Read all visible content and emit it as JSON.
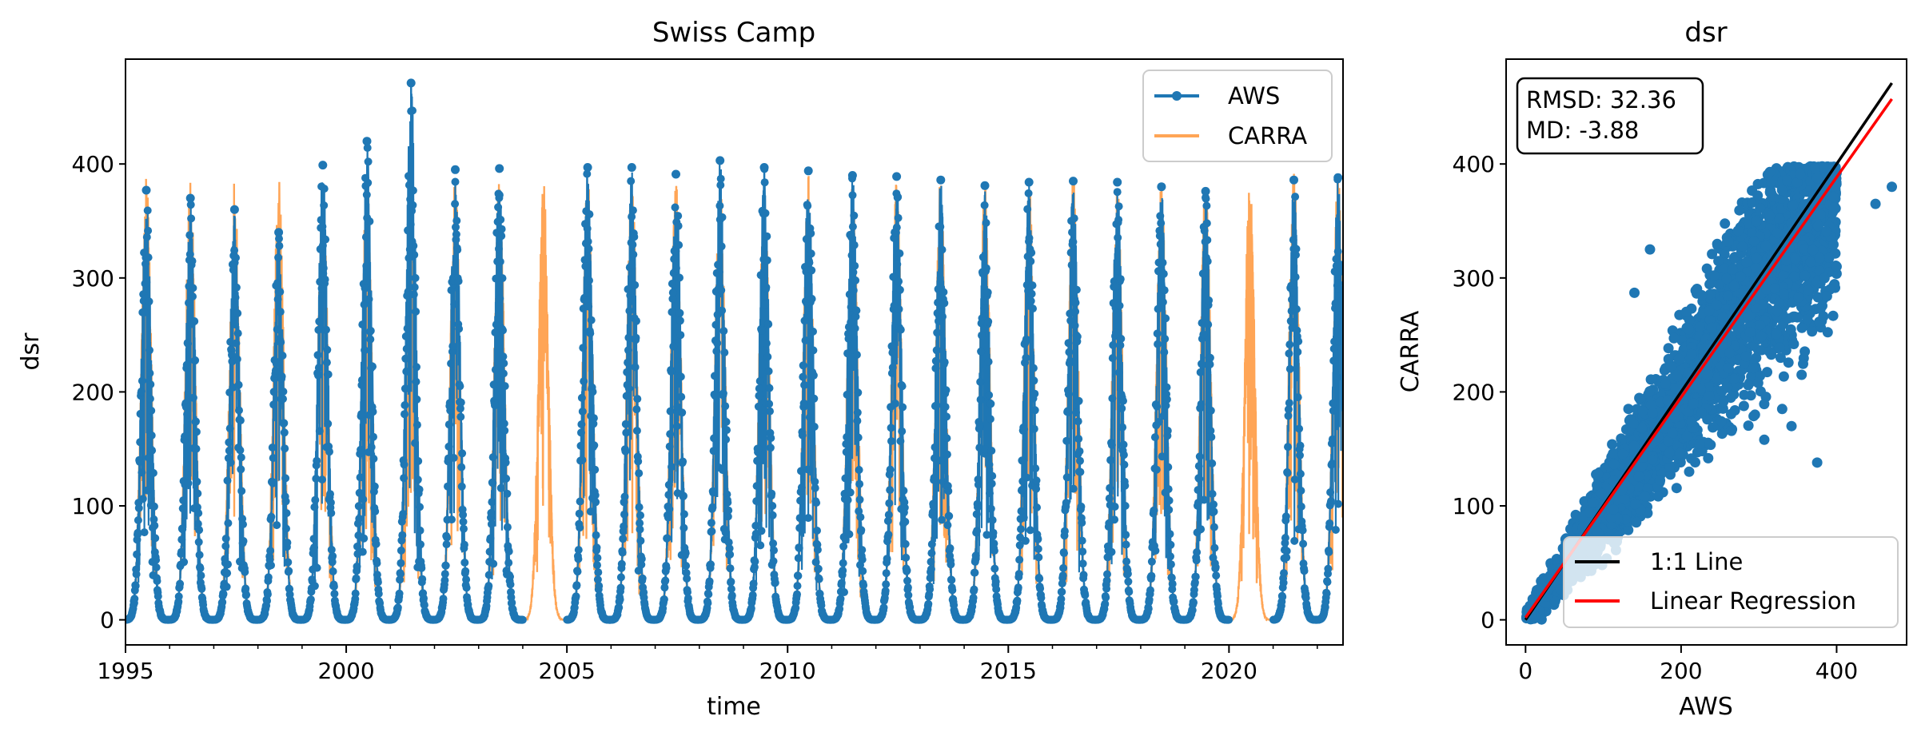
{
  "colors": {
    "aws": "#1f77b4",
    "carra": "#ff7f0e",
    "oneToOne": "#000000",
    "regression": "#ff0000"
  },
  "chart_data": [
    {
      "type": "line",
      "title": "Swiss Camp",
      "xlabel": "time",
      "ylabel": "dsr",
      "xlim": [
        "1995-01-01",
        "2022-08-01"
      ],
      "ylim": [
        -22,
        492
      ],
      "xticks": [
        "1995",
        "2000",
        "2005",
        "2010",
        "2015",
        "2020"
      ],
      "yticks": [
        0,
        100,
        200,
        300,
        400
      ],
      "legend_location": "top-right",
      "series": [
        {
          "name": "AWS",
          "style": "line with markers",
          "summer_peak_by_year": [
            {
              "year": 1995,
              "peak": 377
            },
            {
              "year": 1996,
              "peak": 370
            },
            {
              "year": 1997,
              "peak": 360
            },
            {
              "year": 1998,
              "peak": 340
            },
            {
              "year": 1999,
              "peak": 399
            },
            {
              "year": 2000,
              "peak": 420
            },
            {
              "year": 2001,
              "peak": 471
            },
            {
              "year": 2002,
              "peak": 395
            },
            {
              "year": 2003,
              "peak": 396
            },
            {
              "year": 2005,
              "peak": 397
            },
            {
              "year": 2006,
              "peak": 397
            },
            {
              "year": 2007,
              "peak": 391
            },
            {
              "year": 2008,
              "peak": 403
            },
            {
              "year": 2009,
              "peak": 397
            },
            {
              "year": 2010,
              "peak": 394
            },
            {
              "year": 2011,
              "peak": 390
            },
            {
              "year": 2012,
              "peak": 389
            },
            {
              "year": 2013,
              "peak": 386
            },
            {
              "year": 2014,
              "peak": 381
            },
            {
              "year": 2015,
              "peak": 384
            },
            {
              "year": 2016,
              "peak": 385
            },
            {
              "year": 2017,
              "peak": 384
            },
            {
              "year": 2018,
              "peak": 380
            },
            {
              "year": 2019,
              "peak": 376
            },
            {
              "year": 2021,
              "peak": 386
            },
            {
              "year": 2022,
              "peak": 388
            }
          ],
          "missing_years": [
            2004,
            2020
          ]
        },
        {
          "name": "CARRA",
          "style": "line",
          "summer_peak_by_year": [
            {
              "year": 1995,
              "peak": 390
            },
            {
              "year": 1996,
              "peak": 388
            },
            {
              "year": 1997,
              "peak": 390
            },
            {
              "year": 1998,
              "peak": 391
            },
            {
              "year": 1999,
              "peak": 388
            },
            {
              "year": 2000,
              "peak": 392
            },
            {
              "year": 2001,
              "peak": 391
            },
            {
              "year": 2002,
              "peak": 389
            },
            {
              "year": 2003,
              "peak": 390
            },
            {
              "year": 2004,
              "peak": 389
            },
            {
              "year": 2005,
              "peak": 391
            },
            {
              "year": 2006,
              "peak": 390
            },
            {
              "year": 2007,
              "peak": 390
            },
            {
              "year": 2008,
              "peak": 393
            },
            {
              "year": 2009,
              "peak": 392
            },
            {
              "year": 2010,
              "peak": 391
            },
            {
              "year": 2011,
              "peak": 390
            },
            {
              "year": 2012,
              "peak": 388
            },
            {
              "year": 2013,
              "peak": 391
            },
            {
              "year": 2014,
              "peak": 383
            },
            {
              "year": 2015,
              "peak": 386
            },
            {
              "year": 2016,
              "peak": 390
            },
            {
              "year": 2017,
              "peak": 388
            },
            {
              "year": 2018,
              "peak": 388
            },
            {
              "year": 2019,
              "peak": 390
            },
            {
              "year": 2020,
              "peak": 390
            },
            {
              "year": 2021,
              "peak": 399
            },
            {
              "year": 2022,
              "peak": 396
            }
          ]
        }
      ]
    },
    {
      "type": "scatter",
      "title": "dsr",
      "xlabel": "AWS",
      "ylabel": "CARRA",
      "xlim": [
        -25,
        490
      ],
      "ylim": [
        -22,
        492
      ],
      "xticks": [
        0,
        200,
        400
      ],
      "yticks": [
        0,
        100,
        200,
        300,
        400
      ],
      "stats": [
        "RMSD: 32.36",
        "MD: -3.88"
      ],
      "legend_location": "bottom-right",
      "series": [
        {
          "name": "1:1 Line",
          "type": "line",
          "x": [
            0,
            471
          ],
          "y": [
            0,
            471
          ]
        },
        {
          "name": "Linear Regression",
          "type": "line",
          "x": [
            0,
            471
          ],
          "y": [
            2,
            457
          ]
        }
      ],
      "outlier_points": [
        {
          "x": 471,
          "y": 380
        },
        {
          "x": 450,
          "y": 365
        },
        {
          "x": 375,
          "y": 138
        },
        {
          "x": 355,
          "y": 215
        },
        {
          "x": 342,
          "y": 170
        },
        {
          "x": 307,
          "y": 158
        },
        {
          "x": 330,
          "y": 185
        },
        {
          "x": 295,
          "y": 180
        },
        {
          "x": 160,
          "y": 325
        },
        {
          "x": 140,
          "y": 287
        },
        {
          "x": 400,
          "y": 310
        }
      ]
    }
  ]
}
